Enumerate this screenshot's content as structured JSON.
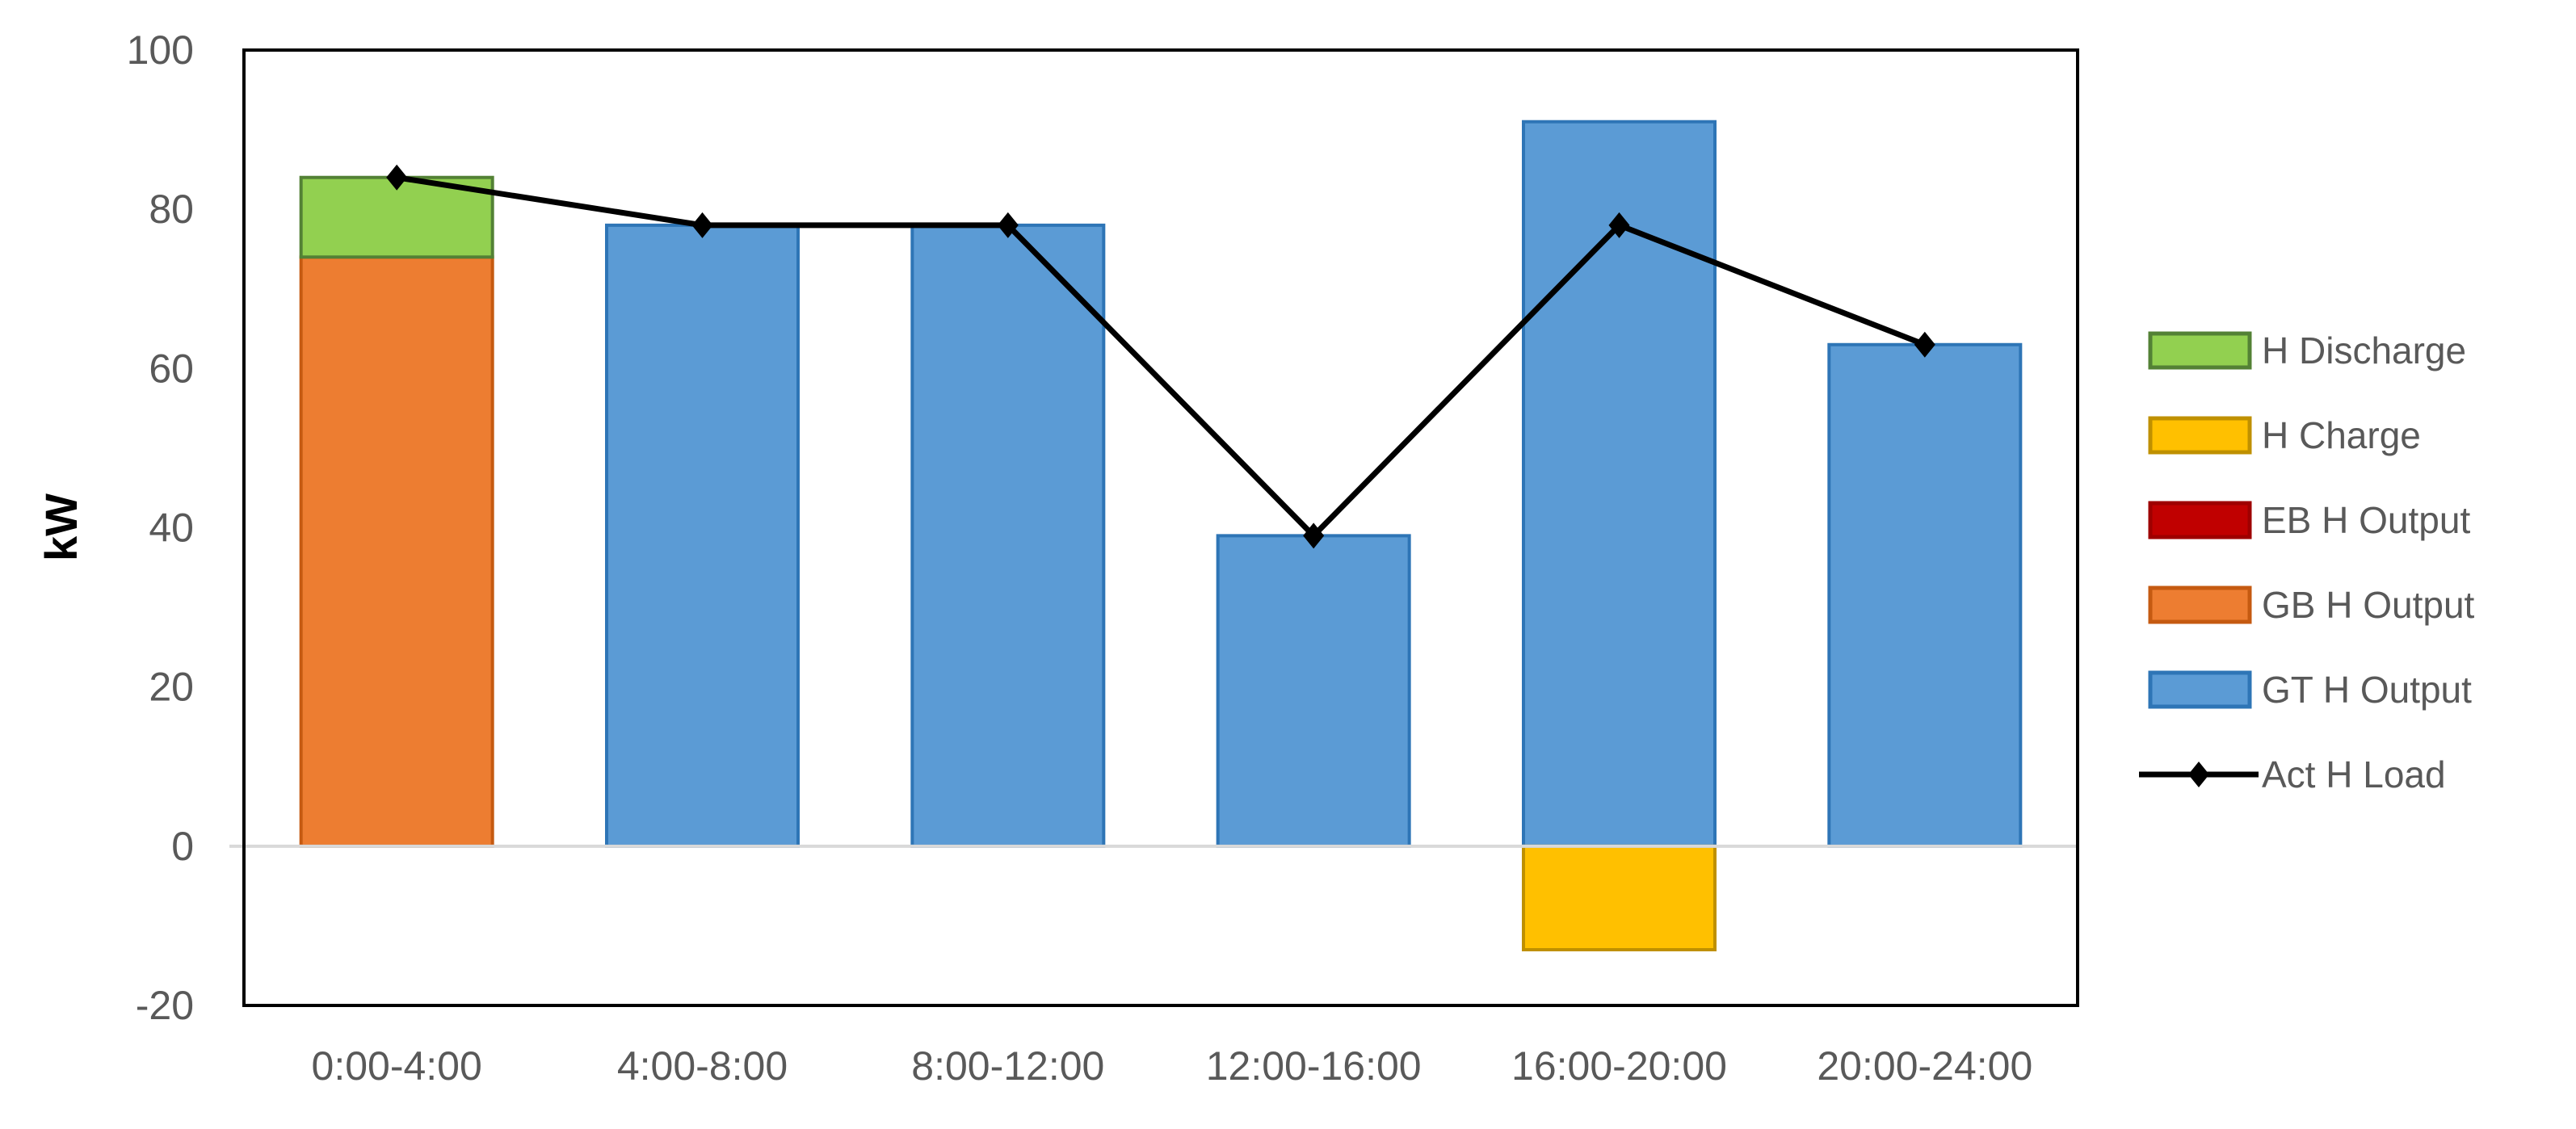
{
  "chart_data": {
    "type": "combo-stacked-bar-line",
    "title": "",
    "ylabel": "kW",
    "xlabel": "",
    "ylim": [
      -20,
      100
    ],
    "yticks": [
      100,
      80,
      60,
      40,
      20,
      0,
      -20
    ],
    "gridlines": "zero-only",
    "legend_position": "right",
    "categories": [
      "0:00-4:00",
      "4:00-8:00",
      "8:00-12:00",
      "12:00-16:00",
      "16:00-20:00",
      "20:00-24:00"
    ],
    "bar_series": [
      {
        "name": "H Discharge",
        "fill": "#92D050",
        "border": "#538135",
        "values": [
          10,
          0,
          0,
          0,
          0,
          0
        ]
      },
      {
        "name": "H Charge",
        "fill": "#FFC000",
        "border": "#BF9000",
        "values": [
          0,
          0,
          0,
          0,
          -13,
          0
        ]
      },
      {
        "name": "EB H Output",
        "fill": "#C00000",
        "border": "#9E0000",
        "values": [
          0,
          0,
          0,
          0,
          0,
          0
        ]
      },
      {
        "name": "GB H Output",
        "fill": "#ED7D31",
        "border": "#C55A11",
        "values": [
          74,
          0,
          0,
          0,
          0,
          0
        ]
      },
      {
        "name": "GT H Output",
        "fill": "#5B9BD5",
        "border": "#2E75B6",
        "values": [
          0,
          78,
          78,
          39,
          91,
          63
        ]
      }
    ],
    "stack_order": [
      "EB H Output",
      "GB H Output",
      "GT H Output",
      "H Discharge",
      "H Charge"
    ],
    "line_series": {
      "name": "Act H Load",
      "color": "#000000",
      "marker": "diamond",
      "values": [
        84,
        78,
        78,
        39,
        78,
        63
      ]
    },
    "legend_entries": [
      "H Discharge",
      "H Charge",
      "EB H Output",
      "GB H Output",
      "GT H Output",
      "Act H Load"
    ],
    "colors": {
      "axis_text": "#595959",
      "legend_text": "#595959",
      "axis_title_text": "#000000",
      "zero_gridline": "#D9D9D9",
      "plot_border": "#000000",
      "background": "#FFFFFF"
    }
  }
}
